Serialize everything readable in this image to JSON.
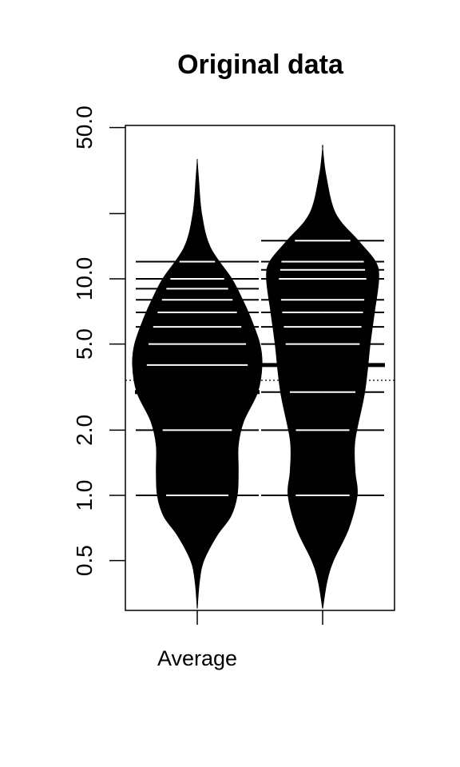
{
  "chart_data": {
    "type": "beanplot",
    "title": "Original data",
    "xlabel": "",
    "ylabel": "",
    "y_scale": "log",
    "ylim": [
      0.3,
      60
    ],
    "y_ticks": [
      0.5,
      1.0,
      2.0,
      5.0,
      10.0,
      50.0
    ],
    "y_tick_labels": [
      "0.5",
      "1.0",
      "2.0",
      "5.0",
      "10.0",
      "50.0"
    ],
    "y_minor_ticks": [
      20
    ],
    "categories": [
      "Average",
      ""
    ],
    "overall_mean": 3.4,
    "grid": false,
    "legend": "none",
    "beans": [
      {
        "label": "Average",
        "mean": 3.0,
        "observations": [
          1,
          2,
          3,
          4,
          5,
          6,
          7,
          8,
          9,
          10,
          12
        ],
        "density_profile": [
          [
            0.3,
            0
          ],
          [
            0.4,
            0.02
          ],
          [
            0.5,
            0.06
          ],
          [
            0.65,
            0.18
          ],
          [
            0.8,
            0.31
          ],
          [
            1.0,
            0.37
          ],
          [
            1.3,
            0.38
          ],
          [
            1.7,
            0.38
          ],
          [
            2.2,
            0.43
          ],
          [
            3.0,
            0.56
          ],
          [
            4.0,
            0.6
          ],
          [
            5.0,
            0.58
          ],
          [
            6.5,
            0.5
          ],
          [
            8.0,
            0.42
          ],
          [
            10.0,
            0.32
          ],
          [
            14.0,
            0.12
          ],
          [
            20.0,
            0.04
          ],
          [
            30.0,
            0.01
          ],
          [
            35.0,
            0
          ]
        ]
      },
      {
        "label": "",
        "mean": 4.0,
        "observations": [
          1,
          2,
          3,
          4,
          5,
          6,
          7,
          8,
          10,
          11,
          12,
          15
        ],
        "density_profile": [
          [
            0.3,
            0
          ],
          [
            0.4,
            0.04
          ],
          [
            0.5,
            0.1
          ],
          [
            0.7,
            0.24
          ],
          [
            1.0,
            0.32
          ],
          [
            1.3,
            0.3
          ],
          [
            1.8,
            0.3
          ],
          [
            3.0,
            0.39
          ],
          [
            5.0,
            0.44
          ],
          [
            7.0,
            0.48
          ],
          [
            10.0,
            0.52
          ],
          [
            12.0,
            0.49
          ],
          [
            15.0,
            0.33
          ],
          [
            20.0,
            0.12
          ],
          [
            30.0,
            0.03
          ],
          [
            40.0,
            0
          ]
        ]
      }
    ]
  }
}
